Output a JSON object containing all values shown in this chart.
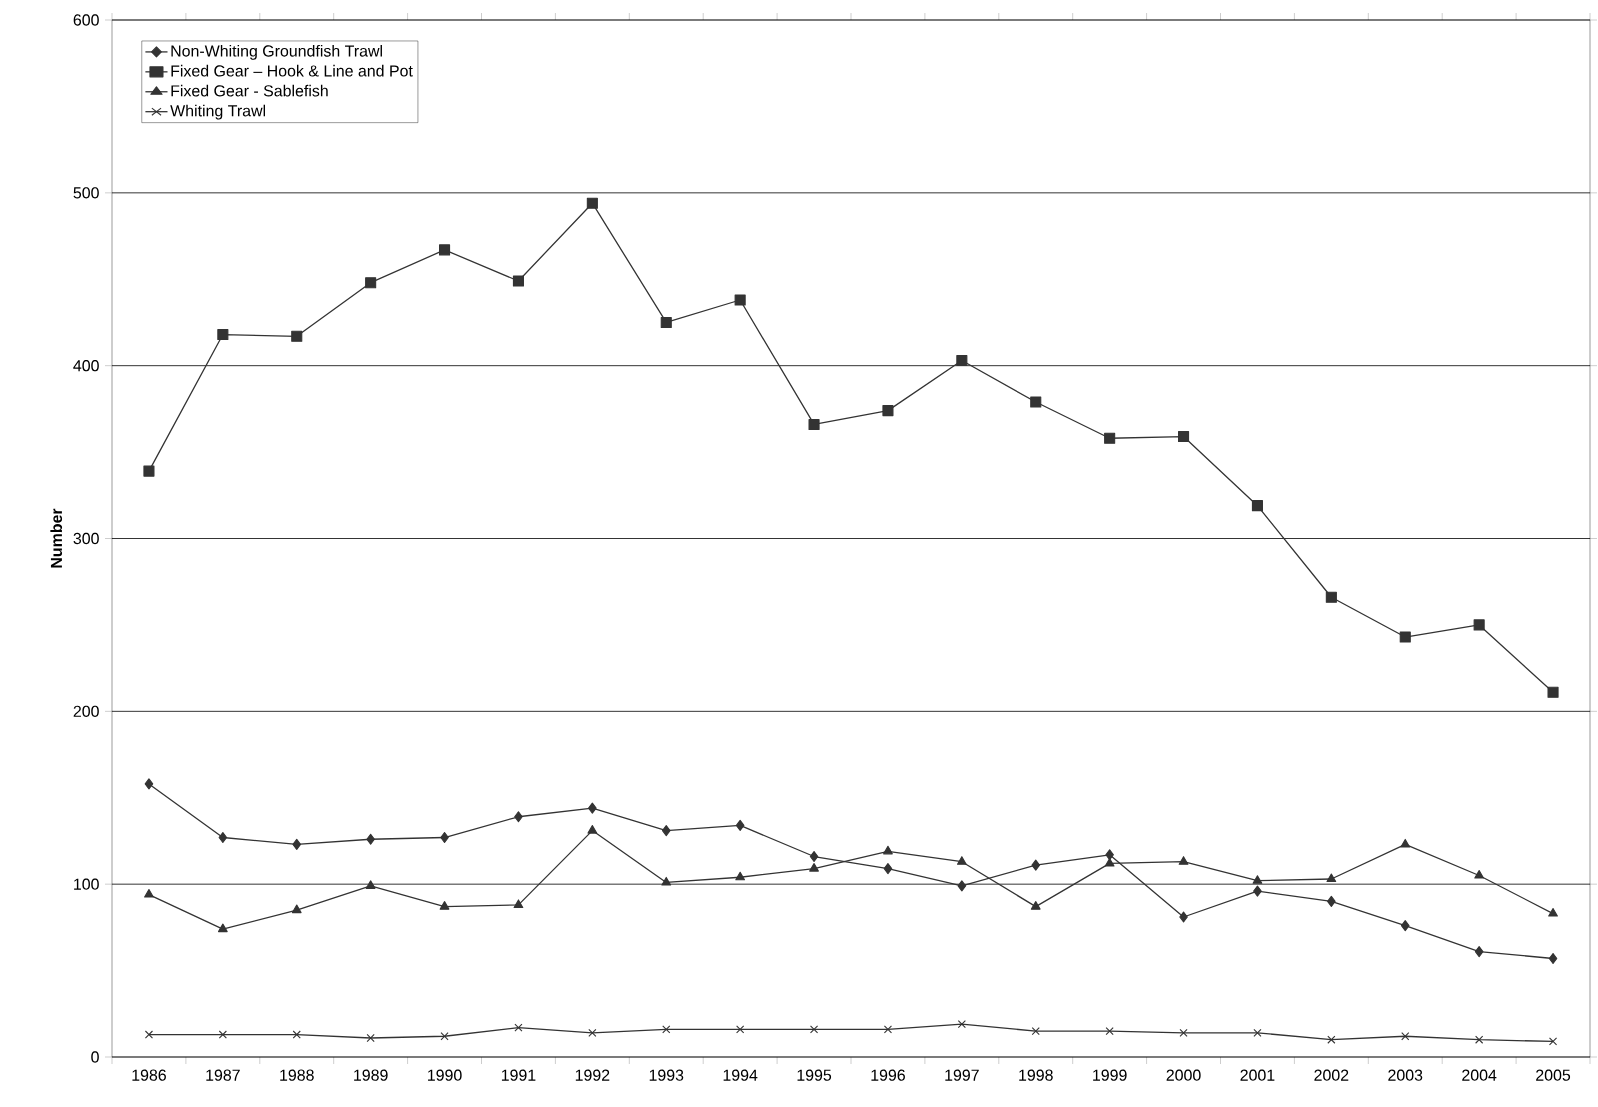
{
  "chart_data": {
    "type": "line",
    "ylabel": "Number",
    "categories": [
      "1986",
      "1987",
      "1988",
      "1989",
      "1990",
      "1991",
      "1992",
      "1993",
      "1994",
      "1995",
      "1996",
      "1997",
      "1998",
      "1999",
      "2000",
      "2001",
      "2002",
      "2003",
      "2004",
      "2005"
    ],
    "series": [
      {
        "name": "Non-Whiting Groundfish Trawl",
        "color": "#333333",
        "marker": "diamond",
        "values": [
          158,
          127,
          123,
          126,
          127,
          139,
          144,
          131,
          134,
          116,
          109,
          99,
          111,
          117,
          81,
          96,
          90,
          76,
          61,
          57
        ]
      },
      {
        "name": "Fixed Gear – Hook & Line and Pot",
        "color": "#333333",
        "marker": "square",
        "values": [
          339,
          418,
          417,
          448,
          467,
          449,
          494,
          425,
          438,
          366,
          374,
          403,
          379,
          358,
          359,
          319,
          266,
          243,
          250,
          211
        ]
      },
      {
        "name": "Fixed Gear - Sablefish",
        "color": "#333333",
        "marker": "triangle",
        "values": [
          94,
          74,
          85,
          99,
          87,
          88,
          131,
          101,
          104,
          109,
          119,
          113,
          87,
          112,
          113,
          102,
          103,
          123,
          105,
          83
        ]
      },
      {
        "name": "Whiting Trawl",
        "color": "#333333",
        "marker": "cross",
        "values": [
          13,
          13,
          13,
          11,
          12,
          17,
          14,
          16,
          16,
          16,
          16,
          19,
          15,
          15,
          14,
          14,
          10,
          12,
          10,
          9
        ]
      }
    ],
    "ylim": [
      0,
      600
    ],
    "yticks": [
      0,
      100,
      200,
      300,
      400,
      500,
      600
    ],
    "grid": "y",
    "legend": "top left",
    "line_style": "solid"
  }
}
